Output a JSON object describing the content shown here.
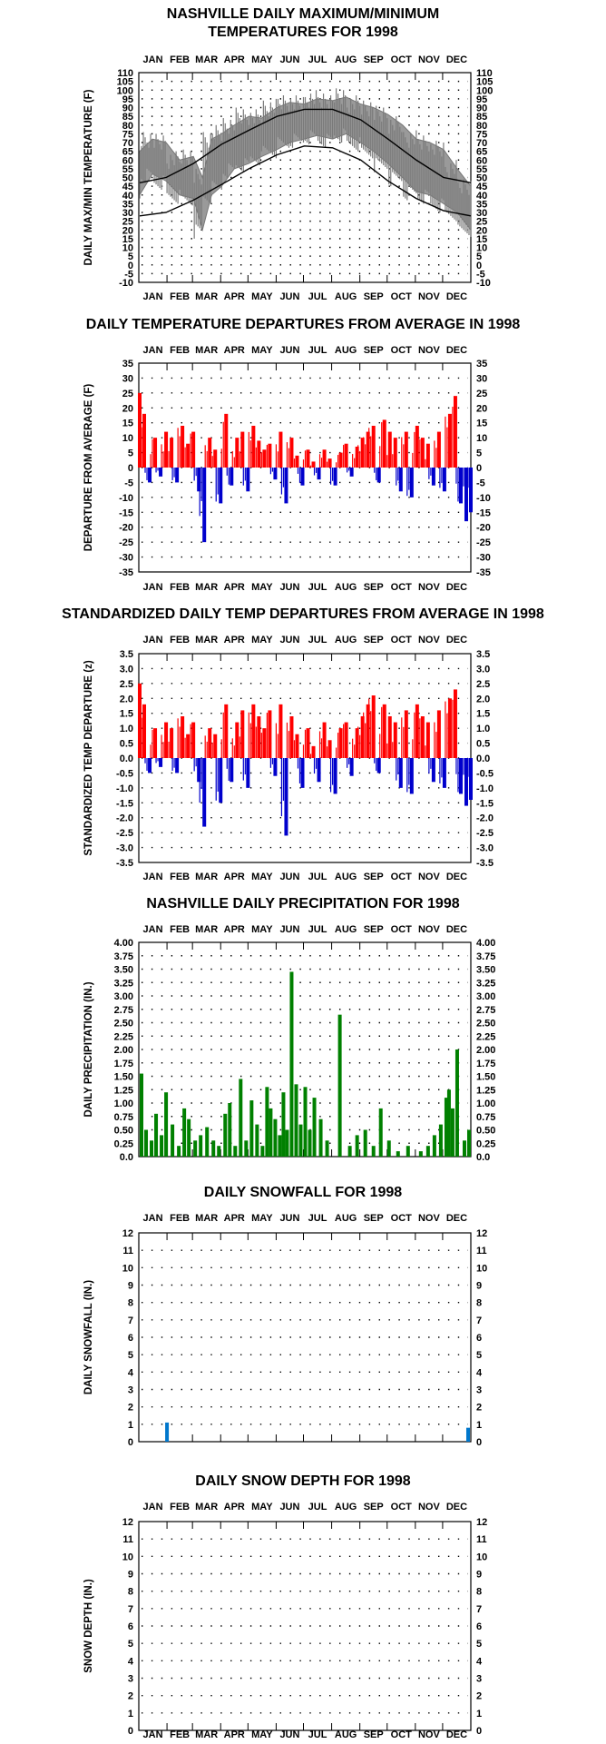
{
  "months": [
    "JAN",
    "FEB",
    "MAR",
    "APR",
    "MAY",
    "JUN",
    "JUL",
    "AUG",
    "SEP",
    "OCT",
    "NOV",
    "DEC"
  ],
  "chart_data": [
    {
      "id": "temp",
      "type": "line",
      "title": [
        "NASHVILLE DAILY MAXIMUM/MINIMUM",
        "TEMPERATURES FOR 1998"
      ],
      "ylabel": "DAILY MAX/MIN TEMPERATURE (F)",
      "ylim": [
        -10,
        110
      ],
      "yticks": [
        "110",
        "105",
        "100",
        "95",
        "90",
        "85",
        "80",
        "75",
        "70",
        "65",
        "60",
        "55",
        "50",
        "45",
        "40",
        "35",
        "30",
        "25",
        "20",
        "15",
        "10",
        "5",
        "0",
        "-5",
        "-10"
      ],
      "grid": true,
      "series": [
        {
          "values_note": "daily observed max/min band (gray)",
          "color": "#808080"
        },
        {
          "color": "#000000"
        },
        {
          "color": "#000000"
        }
      ],
      "normal_max": {
        "x": [
          1,
          30,
          60,
          91,
          121,
          152,
          182,
          213,
          244,
          274,
          305,
          335,
          365
        ],
        "y": [
          47,
          50,
          58,
          69,
          77,
          85,
          89,
          89,
          83,
          72,
          60,
          50,
          47
        ]
      },
      "normal_min": {
        "x": [
          1,
          30,
          60,
          91,
          121,
          152,
          182,
          213,
          244,
          274,
          305,
          335,
          365
        ],
        "y": [
          28,
          30,
          37,
          46,
          55,
          63,
          68,
          67,
          60,
          48,
          38,
          31,
          28
        ]
      },
      "observed_max": {
        "x": [
          1,
          15,
          30,
          45,
          60,
          70,
          80,
          91,
          105,
          121,
          135,
          152,
          166,
          182,
          196,
          213,
          228,
          244,
          258,
          274,
          290,
          305,
          320,
          335,
          350,
          365
        ],
        "y": [
          65,
          72,
          70,
          60,
          62,
          50,
          72,
          75,
          80,
          85,
          84,
          90,
          93,
          92,
          95,
          94,
          96,
          92,
          90,
          86,
          80,
          72,
          70,
          66,
          55,
          45
        ]
      },
      "observed_min": {
        "x": [
          1,
          15,
          30,
          45,
          60,
          70,
          80,
          91,
          105,
          121,
          135,
          152,
          166,
          182,
          196,
          213,
          228,
          244,
          258,
          274,
          290,
          305,
          320,
          335,
          350,
          365
        ],
        "y": [
          40,
          52,
          48,
          40,
          38,
          20,
          40,
          45,
          55,
          58,
          62,
          66,
          70,
          72,
          74,
          72,
          75,
          70,
          65,
          58,
          50,
          42,
          40,
          35,
          30,
          20
        ]
      }
    },
    {
      "id": "dep",
      "type": "bar",
      "title": [
        "DAILY TEMPERATURE DEPARTURES FROM AVERAGE IN 1998"
      ],
      "ylabel": "DEPARTURE FROM AVERAGE (F)",
      "ylim": [
        -35,
        35
      ],
      "yticks": [
        "35",
        "30",
        "25",
        "20",
        "15",
        "10",
        "5",
        "0",
        "-5",
        "-10",
        "-15",
        "-20",
        "-25",
        "-30",
        "-35"
      ],
      "grid": true,
      "positive_color": "#ff0000",
      "negative_color": "#0000cc",
      "x": [
        1,
        6,
        12,
        18,
        24,
        30,
        36,
        42,
        48,
        54,
        60,
        66,
        72,
        78,
        84,
        90,
        96,
        102,
        108,
        114,
        120,
        126,
        132,
        138,
        144,
        150,
        156,
        162,
        168,
        174,
        180,
        186,
        192,
        198,
        204,
        210,
        216,
        222,
        228,
        234,
        240,
        246,
        252,
        258,
        264,
        270,
        276,
        282,
        288,
        294,
        300,
        306,
        312,
        318,
        324,
        330,
        336,
        342,
        348,
        354,
        360,
        365
      ],
      "values": [
        25,
        18,
        -5,
        10,
        -3,
        12,
        10,
        -5,
        14,
        8,
        12,
        -8,
        -25,
        10,
        6,
        -12,
        18,
        -6,
        10,
        12,
        -8,
        14,
        9,
        6,
        8,
        -4,
        12,
        -12,
        10,
        4,
        -6,
        6,
        2,
        -4,
        6,
        3,
        -6,
        5,
        8,
        -3,
        7,
        10,
        12,
        14,
        -5,
        16,
        12,
        10,
        -8,
        12,
        -10,
        14,
        10,
        8,
        -6,
        12,
        -8,
        18,
        24,
        -12,
        -18,
        -15
      ]
    },
    {
      "id": "std",
      "type": "bar",
      "title": [
        "STANDARDIZED DAILY TEMP DEPARTURES FROM AVERAGE IN 1998"
      ],
      "ylabel": "STANDARDIZED TEMP DEPARTURE (z)",
      "ylim": [
        -3.5,
        3.5
      ],
      "yticks": [
        "3.5",
        "3.0",
        "2.5",
        "2.0",
        "1.5",
        "1.0",
        "0.5",
        "0.0",
        "-0.5",
        "-1.0",
        "-1.5",
        "-2.0",
        "-2.5",
        "-3.0",
        "-3.5"
      ],
      "grid": true,
      "positive_color": "#ff0000",
      "negative_color": "#0000cc",
      "x": [
        1,
        6,
        12,
        18,
        24,
        30,
        36,
        42,
        48,
        54,
        60,
        66,
        72,
        78,
        84,
        90,
        96,
        102,
        108,
        114,
        120,
        126,
        132,
        138,
        144,
        150,
        156,
        162,
        168,
        174,
        180,
        186,
        192,
        198,
        204,
        210,
        216,
        222,
        228,
        234,
        240,
        246,
        252,
        258,
        264,
        270,
        276,
        282,
        288,
        294,
        300,
        306,
        312,
        318,
        324,
        330,
        336,
        342,
        348,
        354,
        360,
        365
      ],
      "values": [
        2.5,
        1.8,
        -0.5,
        1.0,
        -0.3,
        1.2,
        1.0,
        -0.5,
        1.4,
        0.8,
        1.2,
        -0.8,
        -2.3,
        1.0,
        0.8,
        -1.5,
        1.8,
        -0.8,
        1.2,
        1.6,
        -1.0,
        1.8,
        1.4,
        1.0,
        1.6,
        -0.6,
        1.8,
        -2.6,
        1.4,
        0.8,
        -1.0,
        1.0,
        0.4,
        -0.8,
        1.2,
        0.6,
        -1.2,
        1.0,
        1.2,
        -0.6,
        1.0,
        1.4,
        1.8,
        2.1,
        -0.5,
        1.8,
        1.4,
        1.2,
        -1.0,
        1.6,
        -1.2,
        1.8,
        1.4,
        1.2,
        -0.8,
        1.6,
        -1.0,
        2.0,
        2.3,
        -1.2,
        -1.6,
        -1.4
      ]
    },
    {
      "id": "precip",
      "type": "bar",
      "title": [
        "NASHVILLE DAILY PRECIPITATION FOR 1998"
      ],
      "ylabel": "DAILY PRECIPITATION (IN.)",
      "ylim": [
        0,
        4
      ],
      "yticks": [
        "4.00",
        "3.75",
        "3.50",
        "3.25",
        "3.00",
        "2.75",
        "2.50",
        "2.25",
        "2.00",
        "1.75",
        "1.50",
        "1.25",
        "1.00",
        "0.75",
        "0.50",
        "0.25",
        "0.0"
      ],
      "grid": true,
      "color": "#008000",
      "x": [
        3,
        8,
        14,
        19,
        25,
        30,
        37,
        44,
        50,
        55,
        62,
        68,
        75,
        82,
        88,
        95,
        100,
        106,
        112,
        118,
        124,
        130,
        136,
        141,
        145,
        150,
        155,
        159,
        163,
        168,
        173,
        178,
        183,
        188,
        193,
        200,
        207,
        221,
        232,
        240,
        249,
        258,
        266,
        275,
        285,
        296,
        310,
        318,
        325,
        332,
        338,
        341,
        345,
        350,
        358,
        363
      ],
      "values": [
        1.55,
        0.5,
        0.3,
        0.8,
        0.4,
        1.2,
        0.6,
        0.2,
        0.9,
        0.7,
        0.3,
        0.4,
        0.55,
        0.3,
        0.2,
        0.8,
        1.0,
        0.2,
        1.45,
        0.3,
        1.05,
        0.6,
        0.2,
        1.3,
        0.9,
        0.7,
        0.4,
        1.2,
        0.5,
        3.45,
        1.35,
        0.6,
        1.3,
        0.5,
        1.1,
        0.7,
        0.3,
        2.65,
        0.2,
        0.4,
        0.5,
        0.2,
        0.9,
        0.3,
        0.1,
        0.2,
        0.1,
        0.2,
        0.4,
        0.6,
        1.1,
        1.25,
        0.9,
        2.0,
        0.3,
        0.5
      ]
    },
    {
      "id": "snow",
      "type": "bar",
      "title": [
        "DAILY SNOWFALL FOR 1998"
      ],
      "ylabel": "DAILY SNOWFALL (IN.)",
      "ylim": [
        0,
        12
      ],
      "yticks": [
        "12",
        "11",
        "10",
        "9",
        "8",
        "7",
        "6",
        "5",
        "4",
        "3",
        "2",
        "1",
        "0"
      ],
      "grid": true,
      "color": "#0077cc",
      "x": [
        31,
        362
      ],
      "values": [
        1.1,
        0.8
      ]
    },
    {
      "id": "depth",
      "type": "bar",
      "title": [
        "DAILY SNOW DEPTH FOR 1998"
      ],
      "ylabel": "SNOW DEPTH (IN.)",
      "ylim": [
        0,
        12
      ],
      "yticks": [
        "12",
        "11",
        "10",
        "9",
        "8",
        "7",
        "6",
        "5",
        "4",
        "3",
        "2",
        "1",
        "0"
      ],
      "grid": true,
      "color": "#0077cc",
      "x": [],
      "values": []
    }
  ]
}
